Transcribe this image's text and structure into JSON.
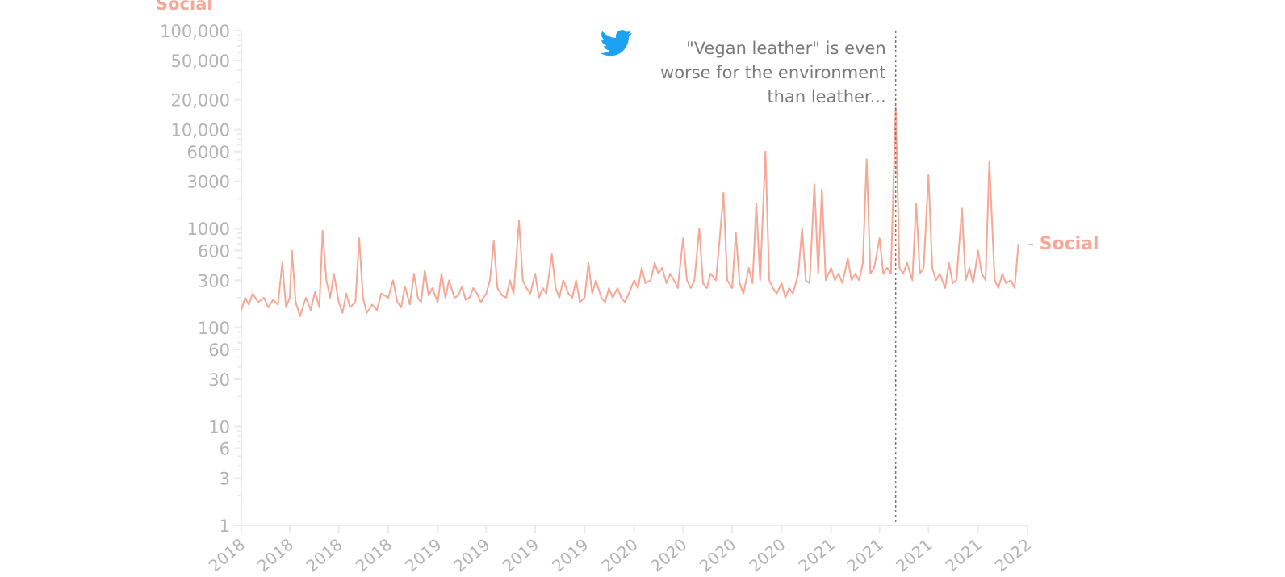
{
  "chart_data": {
    "type": "line",
    "y_title": "Social",
    "y_scale": "log",
    "ylim": [
      1,
      100000
    ],
    "y_ticks": [
      {
        "value": 1,
        "label": "1"
      },
      {
        "value": 3,
        "label": "3"
      },
      {
        "value": 6,
        "label": "6"
      },
      {
        "value": 10,
        "label": "10"
      },
      {
        "value": 30,
        "label": "30"
      },
      {
        "value": 60,
        "label": "60"
      },
      {
        "value": 100,
        "label": "100"
      },
      {
        "value": 300,
        "label": "300"
      },
      {
        "value": 600,
        "label": "600"
      },
      {
        "value": 1000,
        "label": "1000"
      },
      {
        "value": 3000,
        "label": "3000"
      },
      {
        "value": 6000,
        "label": "6000"
      },
      {
        "value": 10000,
        "label": "10,000"
      },
      {
        "value": 20000,
        "label": "20,000"
      },
      {
        "value": 50000,
        "label": "50,000"
      },
      {
        "value": 100000,
        "label": "100,000"
      }
    ],
    "x_ticks": [
      {
        "date": "2018-01-01",
        "label": "2018"
      },
      {
        "date": "2018-04-01",
        "label": "2018"
      },
      {
        "date": "2018-07-01",
        "label": "2018"
      },
      {
        "date": "2018-10-01",
        "label": "2018"
      },
      {
        "date": "2019-01-01",
        "label": "2019"
      },
      {
        "date": "2019-04-01",
        "label": "2019"
      },
      {
        "date": "2019-07-01",
        "label": "2019"
      },
      {
        "date": "2019-10-01",
        "label": "2019"
      },
      {
        "date": "2020-01-01",
        "label": "2020"
      },
      {
        "date": "2020-04-01",
        "label": "2020"
      },
      {
        "date": "2020-07-01",
        "label": "2020"
      },
      {
        "date": "2020-10-01",
        "label": "2020"
      },
      {
        "date": "2021-01-01",
        "label": "2021"
      },
      {
        "date": "2021-04-01",
        "label": "2021"
      },
      {
        "date": "2021-07-01",
        "label": "2021"
      },
      {
        "date": "2021-10-01",
        "label": "2021"
      },
      {
        "date": "2022-01-01",
        "label": "2022"
      }
    ],
    "xlim": [
      "2018-01-01",
      "2022-01-01"
    ],
    "series": [
      {
        "name": "Social",
        "color": "#f6a795",
        "points": [
          [
            "2018-01-01",
            150
          ],
          [
            "2018-01-08",
            200
          ],
          [
            "2018-01-15",
            170
          ],
          [
            "2018-01-22",
            220
          ],
          [
            "2018-02-01",
            180
          ],
          [
            "2018-02-12",
            200
          ],
          [
            "2018-02-20",
            160
          ],
          [
            "2018-03-01",
            190
          ],
          [
            "2018-03-10",
            170
          ],
          [
            "2018-03-18",
            450
          ],
          [
            "2018-03-25",
            160
          ],
          [
            "2018-04-01",
            200
          ],
          [
            "2018-04-05",
            600
          ],
          [
            "2018-04-12",
            180
          ],
          [
            "2018-04-20",
            130
          ],
          [
            "2018-05-01",
            200
          ],
          [
            "2018-05-10",
            150
          ],
          [
            "2018-05-18",
            230
          ],
          [
            "2018-05-26",
            160
          ],
          [
            "2018-06-01",
            950
          ],
          [
            "2018-06-08",
            300
          ],
          [
            "2018-06-15",
            200
          ],
          [
            "2018-06-22",
            350
          ],
          [
            "2018-07-01",
            180
          ],
          [
            "2018-07-08",
            140
          ],
          [
            "2018-07-15",
            220
          ],
          [
            "2018-07-22",
            160
          ],
          [
            "2018-08-01",
            180
          ],
          [
            "2018-08-08",
            800
          ],
          [
            "2018-08-15",
            200
          ],
          [
            "2018-08-22",
            140
          ],
          [
            "2018-09-01",
            170
          ],
          [
            "2018-09-10",
            150
          ],
          [
            "2018-09-18",
            220
          ],
          [
            "2018-10-01",
            200
          ],
          [
            "2018-10-10",
            300
          ],
          [
            "2018-10-18",
            180
          ],
          [
            "2018-10-25",
            160
          ],
          [
            "2018-11-01",
            260
          ],
          [
            "2018-11-10",
            170
          ],
          [
            "2018-11-18",
            350
          ],
          [
            "2018-11-25",
            200
          ],
          [
            "2018-12-01",
            180
          ],
          [
            "2018-12-08",
            380
          ],
          [
            "2018-12-15",
            210
          ],
          [
            "2018-12-22",
            250
          ],
          [
            "2019-01-01",
            180
          ],
          [
            "2019-01-08",
            350
          ],
          [
            "2019-01-15",
            200
          ],
          [
            "2019-01-22",
            300
          ],
          [
            "2019-02-01",
            200
          ],
          [
            "2019-02-08",
            210
          ],
          [
            "2019-02-15",
            260
          ],
          [
            "2019-02-22",
            190
          ],
          [
            "2019-03-01",
            200
          ],
          [
            "2019-03-08",
            250
          ],
          [
            "2019-03-15",
            220
          ],
          [
            "2019-03-22",
            180
          ],
          [
            "2019-04-01",
            220
          ],
          [
            "2019-04-08",
            300
          ],
          [
            "2019-04-15",
            750
          ],
          [
            "2019-04-22",
            250
          ],
          [
            "2019-05-01",
            210
          ],
          [
            "2019-05-08",
            200
          ],
          [
            "2019-05-15",
            300
          ],
          [
            "2019-05-22",
            220
          ],
          [
            "2019-06-01",
            1200
          ],
          [
            "2019-06-08",
            300
          ],
          [
            "2019-06-15",
            250
          ],
          [
            "2019-06-22",
            220
          ],
          [
            "2019-07-01",
            350
          ],
          [
            "2019-07-08",
            200
          ],
          [
            "2019-07-15",
            250
          ],
          [
            "2019-07-22",
            220
          ],
          [
            "2019-08-01",
            550
          ],
          [
            "2019-08-08",
            250
          ],
          [
            "2019-08-15",
            200
          ],
          [
            "2019-08-22",
            300
          ],
          [
            "2019-09-01",
            220
          ],
          [
            "2019-09-08",
            200
          ],
          [
            "2019-09-15",
            300
          ],
          [
            "2019-09-22",
            180
          ],
          [
            "2019-10-01",
            200
          ],
          [
            "2019-10-08",
            450
          ],
          [
            "2019-10-15",
            220
          ],
          [
            "2019-10-22",
            300
          ],
          [
            "2019-11-01",
            200
          ],
          [
            "2019-11-08",
            180
          ],
          [
            "2019-11-15",
            250
          ],
          [
            "2019-11-22",
            200
          ],
          [
            "2019-12-01",
            250
          ],
          [
            "2019-12-08",
            200
          ],
          [
            "2019-12-15",
            180
          ],
          [
            "2019-12-22",
            220
          ],
          [
            "2020-01-01",
            300
          ],
          [
            "2020-01-08",
            250
          ],
          [
            "2020-01-15",
            400
          ],
          [
            "2020-01-22",
            280
          ],
          [
            "2020-02-01",
            300
          ],
          [
            "2020-02-08",
            450
          ],
          [
            "2020-02-15",
            350
          ],
          [
            "2020-02-22",
            400
          ],
          [
            "2020-03-01",
            280
          ],
          [
            "2020-03-08",
            350
          ],
          [
            "2020-03-15",
            300
          ],
          [
            "2020-03-22",
            250
          ],
          [
            "2020-04-01",
            800
          ],
          [
            "2020-04-08",
            300
          ],
          [
            "2020-04-15",
            250
          ],
          [
            "2020-04-22",
            300
          ],
          [
            "2020-05-01",
            1000
          ],
          [
            "2020-05-08",
            280
          ],
          [
            "2020-05-15",
            250
          ],
          [
            "2020-05-22",
            350
          ],
          [
            "2020-06-01",
            300
          ],
          [
            "2020-06-08",
            800
          ],
          [
            "2020-06-15",
            2300
          ],
          [
            "2020-06-22",
            300
          ],
          [
            "2020-07-01",
            250
          ],
          [
            "2020-07-08",
            900
          ],
          [
            "2020-07-15",
            280
          ],
          [
            "2020-07-22",
            220
          ],
          [
            "2020-08-01",
            400
          ],
          [
            "2020-08-08",
            280
          ],
          [
            "2020-08-15",
            1800
          ],
          [
            "2020-08-22",
            300
          ],
          [
            "2020-09-01",
            6000
          ],
          [
            "2020-09-08",
            300
          ],
          [
            "2020-09-15",
            250
          ],
          [
            "2020-09-22",
            220
          ],
          [
            "2020-10-01",
            280
          ],
          [
            "2020-10-08",
            200
          ],
          [
            "2020-10-15",
            250
          ],
          [
            "2020-10-22",
            220
          ],
          [
            "2020-11-01",
            350
          ],
          [
            "2020-11-08",
            1000
          ],
          [
            "2020-11-15",
            300
          ],
          [
            "2020-11-22",
            280
          ],
          [
            "2020-12-01",
            2800
          ],
          [
            "2020-12-08",
            350
          ],
          [
            "2020-12-15",
            2500
          ],
          [
            "2020-12-22",
            300
          ],
          [
            "2021-01-01",
            400
          ],
          [
            "2021-01-08",
            300
          ],
          [
            "2021-01-15",
            350
          ],
          [
            "2021-01-22",
            280
          ],
          [
            "2021-02-01",
            500
          ],
          [
            "2021-02-08",
            300
          ],
          [
            "2021-02-15",
            350
          ],
          [
            "2021-02-22",
            300
          ],
          [
            "2021-03-01",
            450
          ],
          [
            "2021-03-08",
            5000
          ],
          [
            "2021-03-15",
            350
          ],
          [
            "2021-03-22",
            400
          ],
          [
            "2021-04-01",
            800
          ],
          [
            "2021-04-08",
            350
          ],
          [
            "2021-04-15",
            400
          ],
          [
            "2021-04-22",
            350
          ],
          [
            "2021-05-01",
            17000
          ],
          [
            "2021-05-08",
            400
          ],
          [
            "2021-05-15",
            350
          ],
          [
            "2021-05-22",
            450
          ],
          [
            "2021-06-01",
            300
          ],
          [
            "2021-06-08",
            1800
          ],
          [
            "2021-06-15",
            350
          ],
          [
            "2021-06-22",
            400
          ],
          [
            "2021-07-01",
            3500
          ],
          [
            "2021-07-08",
            400
          ],
          [
            "2021-07-15",
            300
          ],
          [
            "2021-07-22",
            350
          ],
          [
            "2021-08-01",
            250
          ],
          [
            "2021-08-08",
            450
          ],
          [
            "2021-08-15",
            280
          ],
          [
            "2021-08-22",
            300
          ],
          [
            "2021-09-01",
            1600
          ],
          [
            "2021-09-08",
            300
          ],
          [
            "2021-09-15",
            400
          ],
          [
            "2021-09-22",
            280
          ],
          [
            "2021-10-01",
            600
          ],
          [
            "2021-10-08",
            350
          ],
          [
            "2021-10-15",
            300
          ],
          [
            "2021-10-22",
            4800
          ],
          [
            "2021-11-01",
            300
          ],
          [
            "2021-11-08",
            250
          ],
          [
            "2021-11-15",
            350
          ],
          [
            "2021-11-22",
            280
          ],
          [
            "2021-12-01",
            300
          ],
          [
            "2021-12-08",
            250
          ],
          [
            "2021-12-15",
            700
          ]
        ]
      }
    ],
    "annotation": {
      "date": "2021-05-01",
      "icon": "twitter-bird-icon",
      "icon_color": "#1da1f2",
      "text_lines": [
        "\"Vegan leather\" is even",
        "worse for the environment",
        "than leather..."
      ]
    },
    "end_label": {
      "dash": "-",
      "text": "Social"
    },
    "colors": {
      "axis": "#ebebeb",
      "tick_text": "#b3b3b3",
      "annotation_text": "#7a7a7a",
      "guide_line": "#777777"
    },
    "grid": false,
    "legend": "inline at end of line"
  }
}
